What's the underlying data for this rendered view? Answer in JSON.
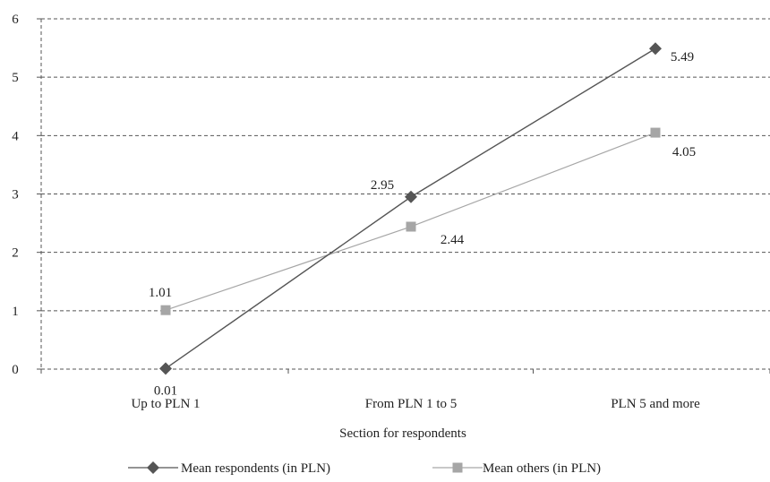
{
  "chart_data": {
    "type": "line",
    "categories": [
      "Up to PLN 1",
      "From PLN 1 to 5",
      "PLN 5 and more"
    ],
    "series": [
      {
        "name": "Mean respondents (in PLN)",
        "values": [
          0.01,
          2.95,
          5.49
        ],
        "labels": [
          "0.01",
          "2.95",
          "5.49"
        ],
        "color": "#555555",
        "marker": "diamond"
      },
      {
        "name": "Mean others (in PLN)",
        "values": [
          1.01,
          2.44,
          4.05
        ],
        "labels": [
          "1.01",
          "2.44",
          "4.05"
        ],
        "color": "#a6a6a6",
        "marker": "square"
      }
    ],
    "y_ticks": [
      "0",
      "1",
      "2",
      "3",
      "4",
      "5",
      "6"
    ],
    "ylim": [
      0,
      6
    ],
    "xlabel": "Section for respondents",
    "ylabel": "",
    "title": "",
    "grid": "horizontal-dashed",
    "legend_position": "bottom"
  }
}
